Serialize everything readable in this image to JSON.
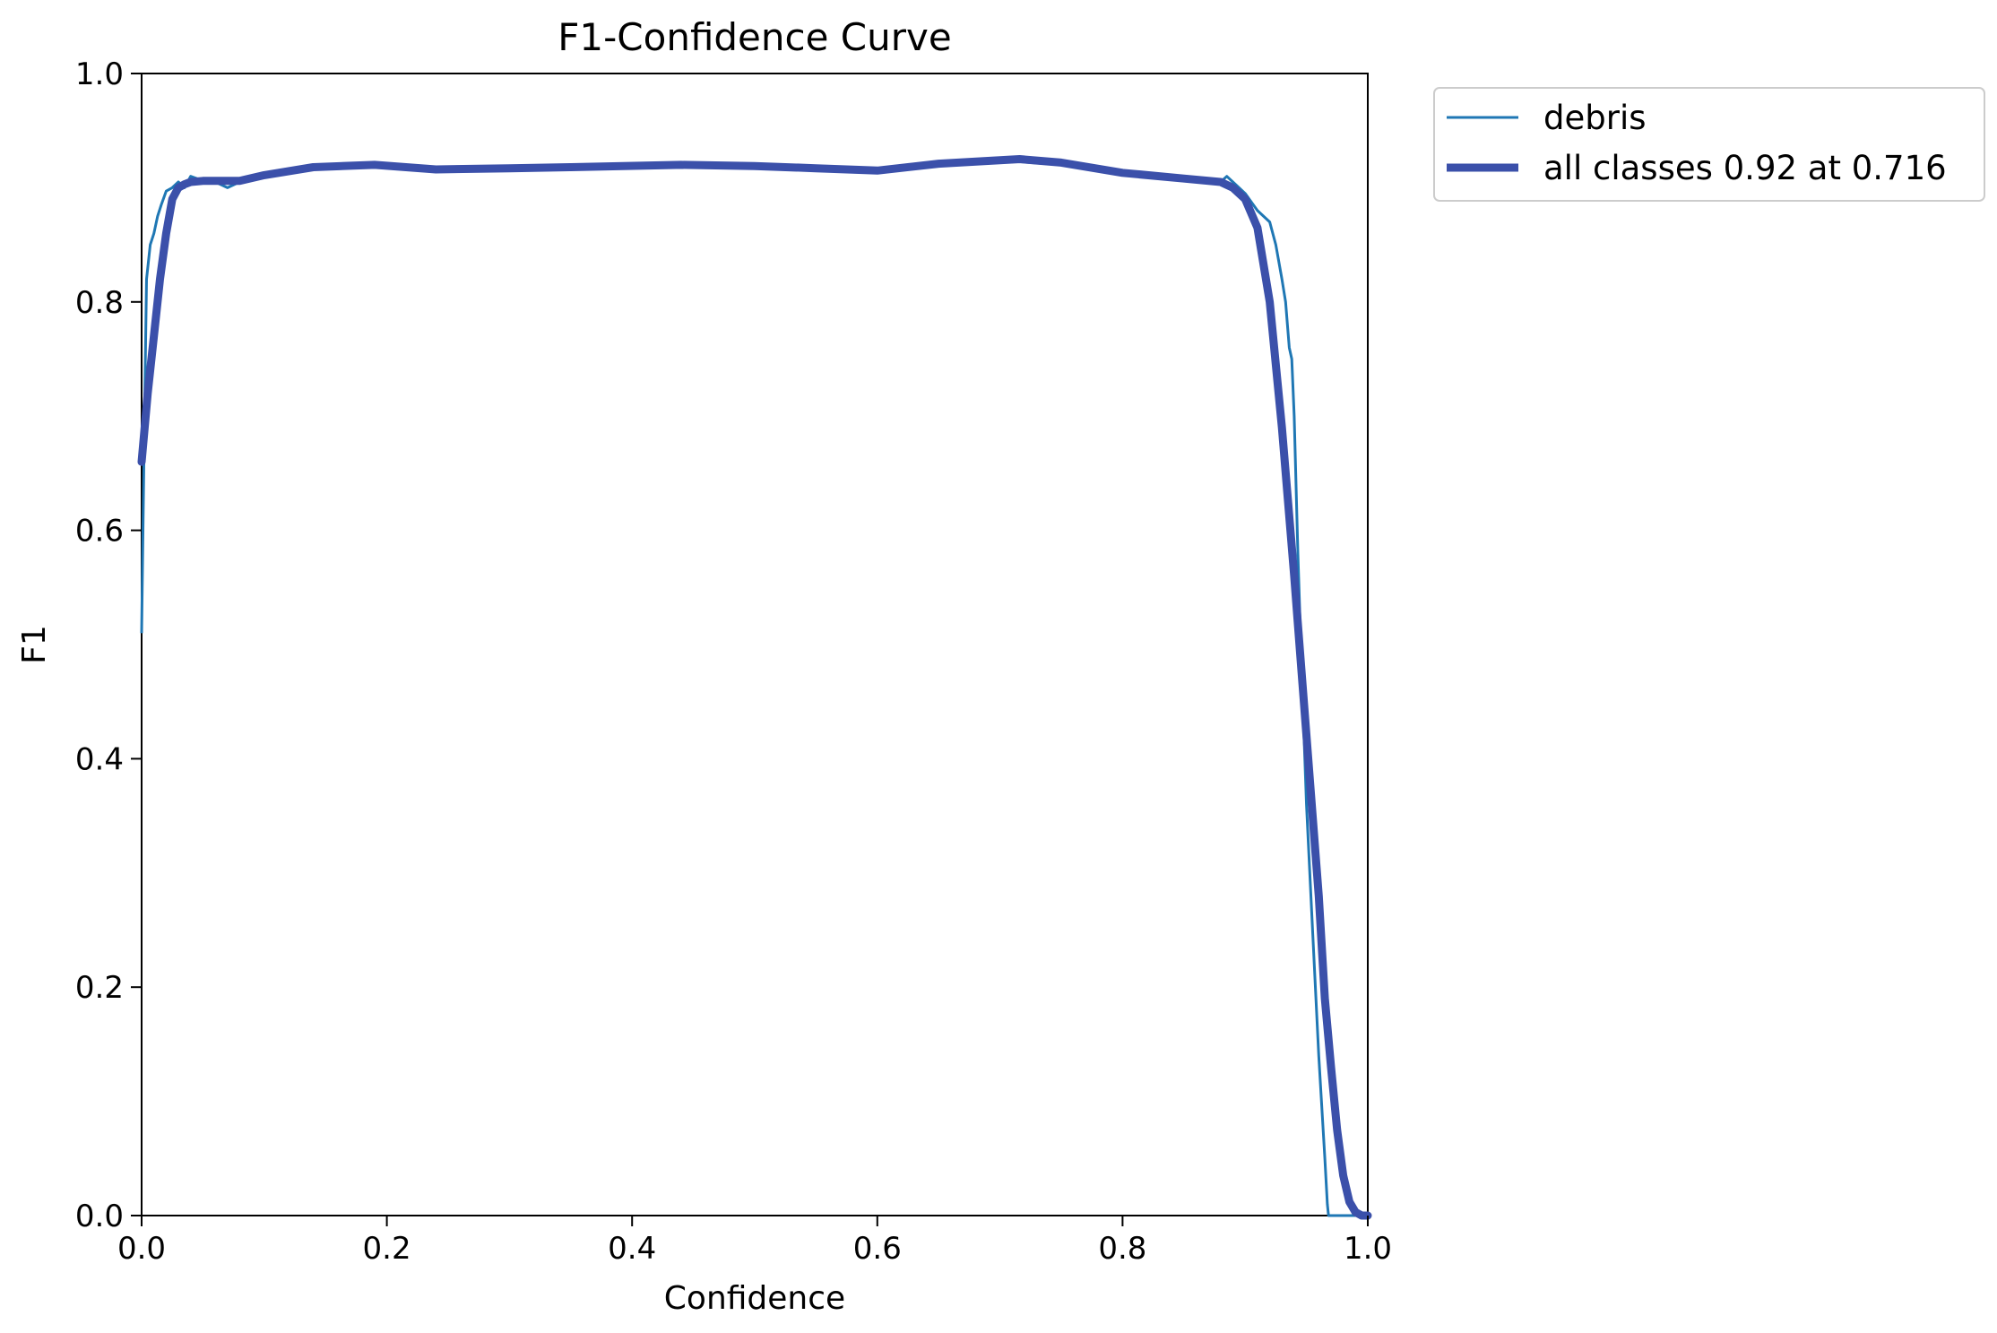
{
  "chart_data": {
    "type": "line",
    "title": "F1-Confidence Curve",
    "xlabel": "Confidence",
    "ylabel": "F1",
    "xlim": [
      0.0,
      1.0
    ],
    "ylim": [
      0.0,
      1.0
    ],
    "xticks": [
      "0.0",
      "0.2",
      "0.4",
      "0.6",
      "0.8",
      "1.0"
    ],
    "yticks": [
      "0.0",
      "0.2",
      "0.4",
      "0.6",
      "0.8",
      "1.0"
    ],
    "grid": false,
    "legend_position": "outside upper right",
    "series": [
      {
        "name": "debris",
        "color": "#1f77b4",
        "x": [
          0.0,
          0.002,
          0.004,
          0.007,
          0.01,
          0.013,
          0.016,
          0.02,
          0.025,
          0.03,
          0.035,
          0.04,
          0.045,
          0.05,
          0.06,
          0.07,
          0.08,
          0.09,
          0.1,
          0.15,
          0.2,
          0.25,
          0.3,
          0.4,
          0.45,
          0.5,
          0.6,
          0.65,
          0.7,
          0.75,
          0.8,
          0.85,
          0.88,
          0.885,
          0.89,
          0.9,
          0.91,
          0.92,
          0.925,
          0.93,
          0.933,
          0.936,
          0.938,
          0.94,
          0.943,
          0.946,
          0.95,
          0.955,
          0.96,
          0.965,
          0.967,
          0.968,
          0.969,
          0.97,
          0.975,
          1.0
        ],
        "y": [
          0.51,
          0.67,
          0.82,
          0.85,
          0.86,
          0.875,
          0.885,
          0.897,
          0.9,
          0.905,
          0.9,
          0.91,
          0.908,
          0.905,
          0.905,
          0.9,
          0.905,
          0.907,
          0.91,
          0.918,
          0.921,
          0.917,
          0.918,
          0.92,
          0.92,
          0.918,
          0.915,
          0.921,
          0.924,
          0.92,
          0.912,
          0.906,
          0.905,
          0.91,
          0.905,
          0.895,
          0.88,
          0.87,
          0.85,
          0.82,
          0.8,
          0.76,
          0.75,
          0.7,
          0.58,
          0.48,
          0.36,
          0.25,
          0.14,
          0.05,
          0.01,
          0.0,
          0.0,
          0.0,
          0.0,
          0.0
        ]
      },
      {
        "name": "all classes 0.92 at 0.716",
        "color": "#3b50aa",
        "x": [
          0.0,
          0.005,
          0.01,
          0.015,
          0.02,
          0.025,
          0.03,
          0.035,
          0.04,
          0.05,
          0.06,
          0.08,
          0.1,
          0.14,
          0.19,
          0.24,
          0.3,
          0.35,
          0.44,
          0.5,
          0.55,
          0.6,
          0.65,
          0.716,
          0.75,
          0.8,
          0.85,
          0.88,
          0.89,
          0.9,
          0.91,
          0.92,
          0.93,
          0.94,
          0.95,
          0.96,
          0.965,
          0.97,
          0.975,
          0.98,
          0.985,
          0.99,
          0.995,
          1.0
        ],
        "y": [
          0.66,
          0.72,
          0.77,
          0.82,
          0.86,
          0.89,
          0.9,
          0.903,
          0.905,
          0.906,
          0.906,
          0.906,
          0.911,
          0.918,
          0.92,
          0.916,
          0.917,
          0.918,
          0.92,
          0.919,
          0.917,
          0.915,
          0.921,
          0.925,
          0.922,
          0.913,
          0.908,
          0.905,
          0.9,
          0.89,
          0.865,
          0.8,
          0.69,
          0.56,
          0.42,
          0.28,
          0.19,
          0.13,
          0.075,
          0.035,
          0.012,
          0.003,
          0.0,
          0.0
        ]
      }
    ]
  }
}
